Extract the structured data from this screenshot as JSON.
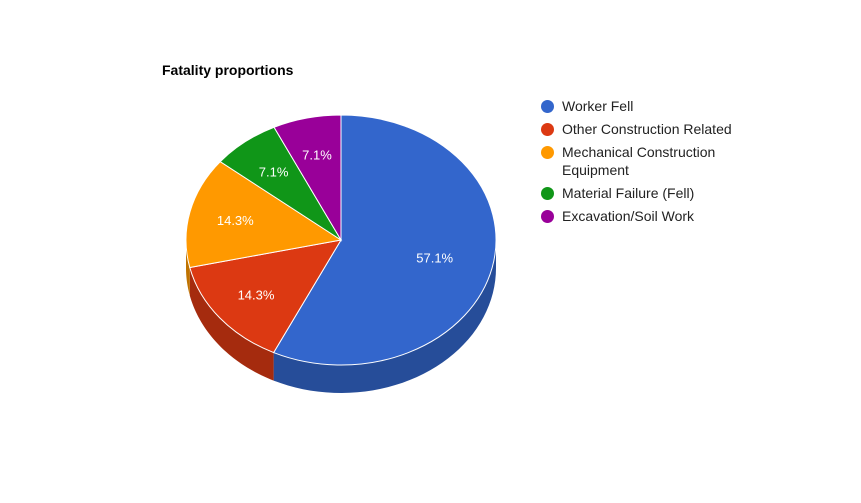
{
  "chart_data": {
    "type": "pie",
    "title": "Fatality proportions",
    "legend_position": "right",
    "is_3d": true,
    "slices": [
      {
        "label": "Worker Fell",
        "value": 57.1,
        "display": "57.1%",
        "color": "#3366cc",
        "side_color": "#264d99"
      },
      {
        "label": "Other Construction Related",
        "value": 14.3,
        "display": "14.3%",
        "color": "#dc3912",
        "side_color": "#a52b0e"
      },
      {
        "label": "Mechanical Construction Equipment",
        "value": 14.3,
        "display": "14.3%",
        "color": "#ff9900",
        "side_color": "#bf7300"
      },
      {
        "label": "Material Failure (Fell)",
        "value": 7.1,
        "display": "7.1%",
        "color": "#109618",
        "side_color": "#0c7112"
      },
      {
        "label": "Excavation/Soil Work",
        "value": 7.1,
        "display": "7.1%",
        "color": "#990099",
        "side_color": "#730073"
      }
    ]
  }
}
